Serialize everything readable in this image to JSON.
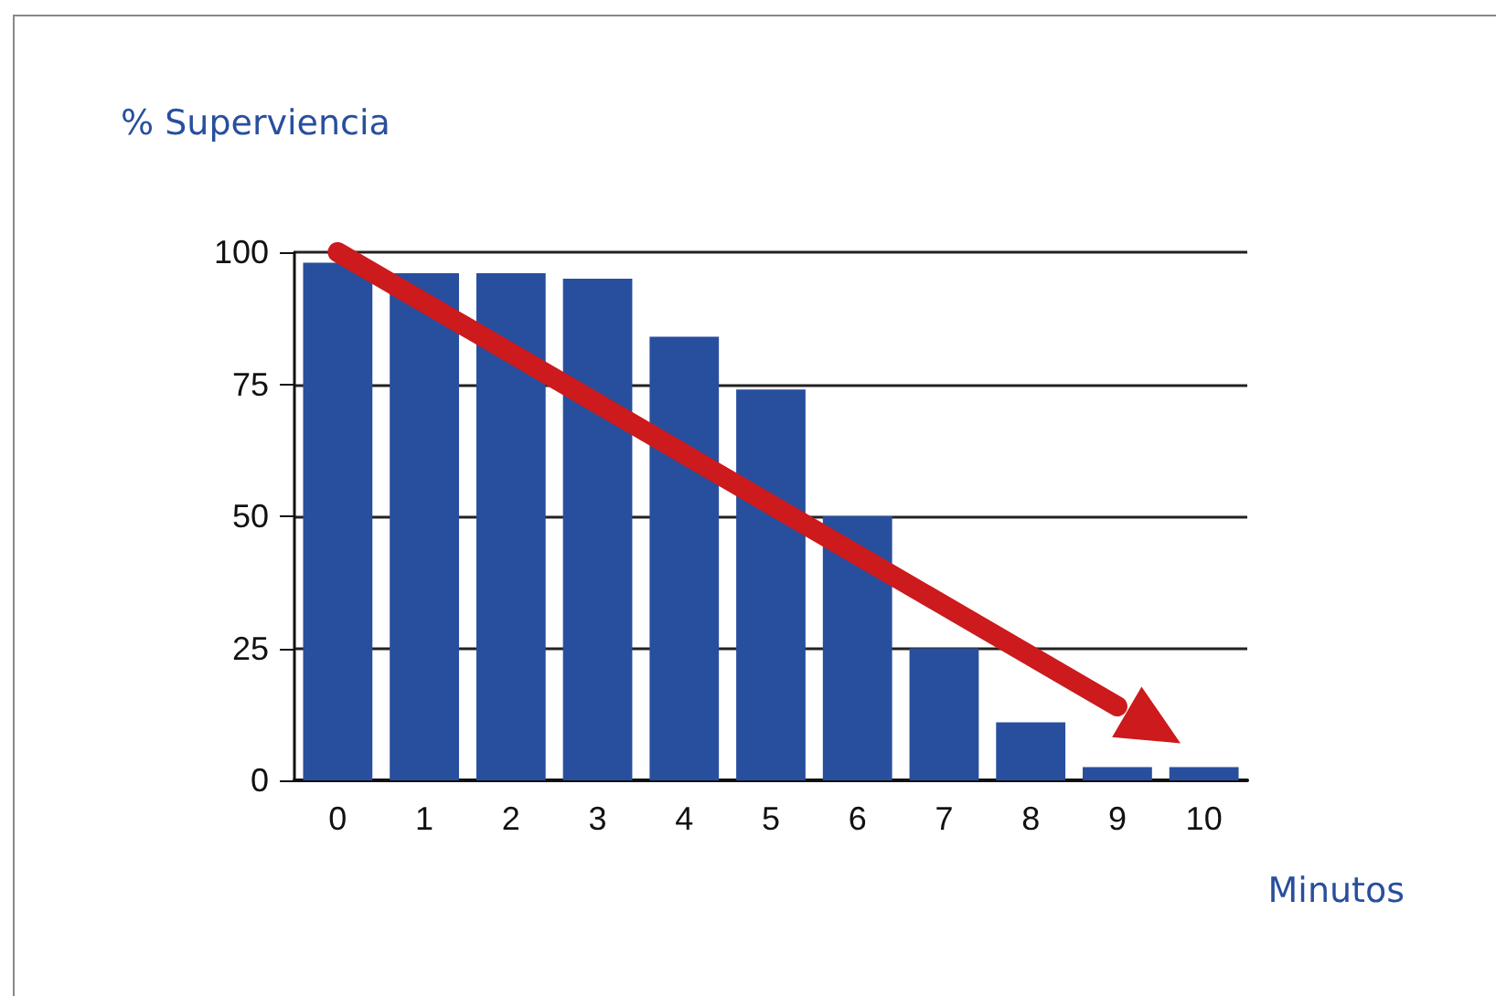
{
  "chart_data": {
    "type": "bar",
    "ylabel": "% Superviencia",
    "xlabel": "Minutos",
    "categories": [
      "0",
      "1",
      "2",
      "3",
      "4",
      "5",
      "6",
      "7",
      "8",
      "9",
      "10"
    ],
    "series": [
      {
        "color": "#284f9e",
        "values": [
          98,
          96,
          96,
          95,
          84,
          74,
          50,
          25,
          11,
          2.5,
          2.5
        ]
      },
      {
        "type": "line",
        "color": "#cc1a1d",
        "x": [
          "0",
          "9"
        ],
        "values": [
          100,
          14
        ]
      }
    ],
    "ylim": [
      0,
      100
    ],
    "yticks": [
      0,
      25,
      50,
      75,
      100
    ],
    "grid": "y"
  }
}
